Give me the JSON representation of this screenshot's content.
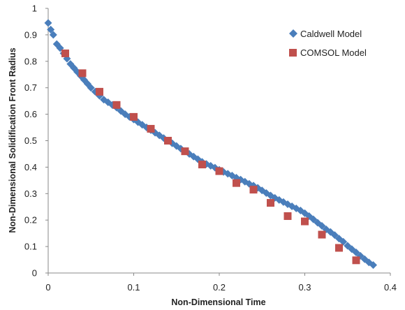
{
  "chart_data": {
    "type": "scatter",
    "title": "",
    "xlabel": "Non-Dimensional Time",
    "ylabel": "Non-Dimensional Solidification Front Radius",
    "xlim": [
      0,
      0.4
    ],
    "ylim": [
      0,
      1
    ],
    "xticks": [
      "0",
      "0.1",
      "0.2",
      "0.3",
      "0.4"
    ],
    "yticks": [
      "0",
      "0.1",
      "0.2",
      "0.3",
      "0.4",
      "0.5",
      "0.6",
      "0.7",
      "0.8",
      "0.9",
      "1"
    ],
    "grid": false,
    "legend_position": "top-right",
    "series": [
      {
        "name": "Caldwell Model",
        "marker": "diamond",
        "color": "#4a7ebb",
        "x": [
          0.0,
          0.003,
          0.006,
          0.01,
          0.014,
          0.018,
          0.022,
          0.026,
          0.03,
          0.034,
          0.038,
          0.042,
          0.046,
          0.05,
          0.055,
          0.06,
          0.065,
          0.07,
          0.075,
          0.08,
          0.085,
          0.09,
          0.095,
          0.1,
          0.105,
          0.11,
          0.115,
          0.12,
          0.125,
          0.13,
          0.135,
          0.14,
          0.145,
          0.15,
          0.155,
          0.16,
          0.165,
          0.17,
          0.175,
          0.18,
          0.185,
          0.19,
          0.195,
          0.2,
          0.205,
          0.21,
          0.215,
          0.22,
          0.225,
          0.23,
          0.235,
          0.24,
          0.245,
          0.25,
          0.255,
          0.26,
          0.265,
          0.27,
          0.275,
          0.28,
          0.285,
          0.29,
          0.295,
          0.3,
          0.305,
          0.31,
          0.315,
          0.32,
          0.325,
          0.33,
          0.335,
          0.34,
          0.345,
          0.35,
          0.355,
          0.36,
          0.365,
          0.37,
          0.375,
          0.38
        ],
        "y": [
          0.945,
          0.92,
          0.9,
          0.865,
          0.85,
          0.83,
          0.81,
          0.79,
          0.775,
          0.76,
          0.745,
          0.73,
          0.715,
          0.7,
          0.685,
          0.67,
          0.655,
          0.645,
          0.635,
          0.625,
          0.612,
          0.6,
          0.59,
          0.58,
          0.57,
          0.56,
          0.55,
          0.54,
          0.53,
          0.52,
          0.51,
          0.5,
          0.49,
          0.48,
          0.47,
          0.46,
          0.45,
          0.44,
          0.43,
          0.42,
          0.412,
          0.405,
          0.398,
          0.39,
          0.382,
          0.375,
          0.368,
          0.36,
          0.353,
          0.345,
          0.337,
          0.33,
          0.322,
          0.312,
          0.302,
          0.293,
          0.284,
          0.276,
          0.268,
          0.26,
          0.252,
          0.244,
          0.236,
          0.226,
          0.215,
          0.203,
          0.19,
          0.178,
          0.165,
          0.155,
          0.143,
          0.13,
          0.118,
          0.103,
          0.09,
          0.078,
          0.065,
          0.052,
          0.04,
          0.03
        ]
      },
      {
        "name": "COMSOL Model",
        "marker": "square",
        "color": "#c0504d",
        "x": [
          0.02,
          0.04,
          0.06,
          0.08,
          0.1,
          0.12,
          0.14,
          0.16,
          0.18,
          0.2,
          0.22,
          0.24,
          0.26,
          0.28,
          0.3,
          0.32,
          0.34,
          0.36
        ],
        "y": [
          0.83,
          0.755,
          0.685,
          0.635,
          0.59,
          0.545,
          0.5,
          0.46,
          0.41,
          0.385,
          0.34,
          0.315,
          0.265,
          0.215,
          0.195,
          0.145,
          0.095,
          0.048
        ]
      }
    ]
  }
}
